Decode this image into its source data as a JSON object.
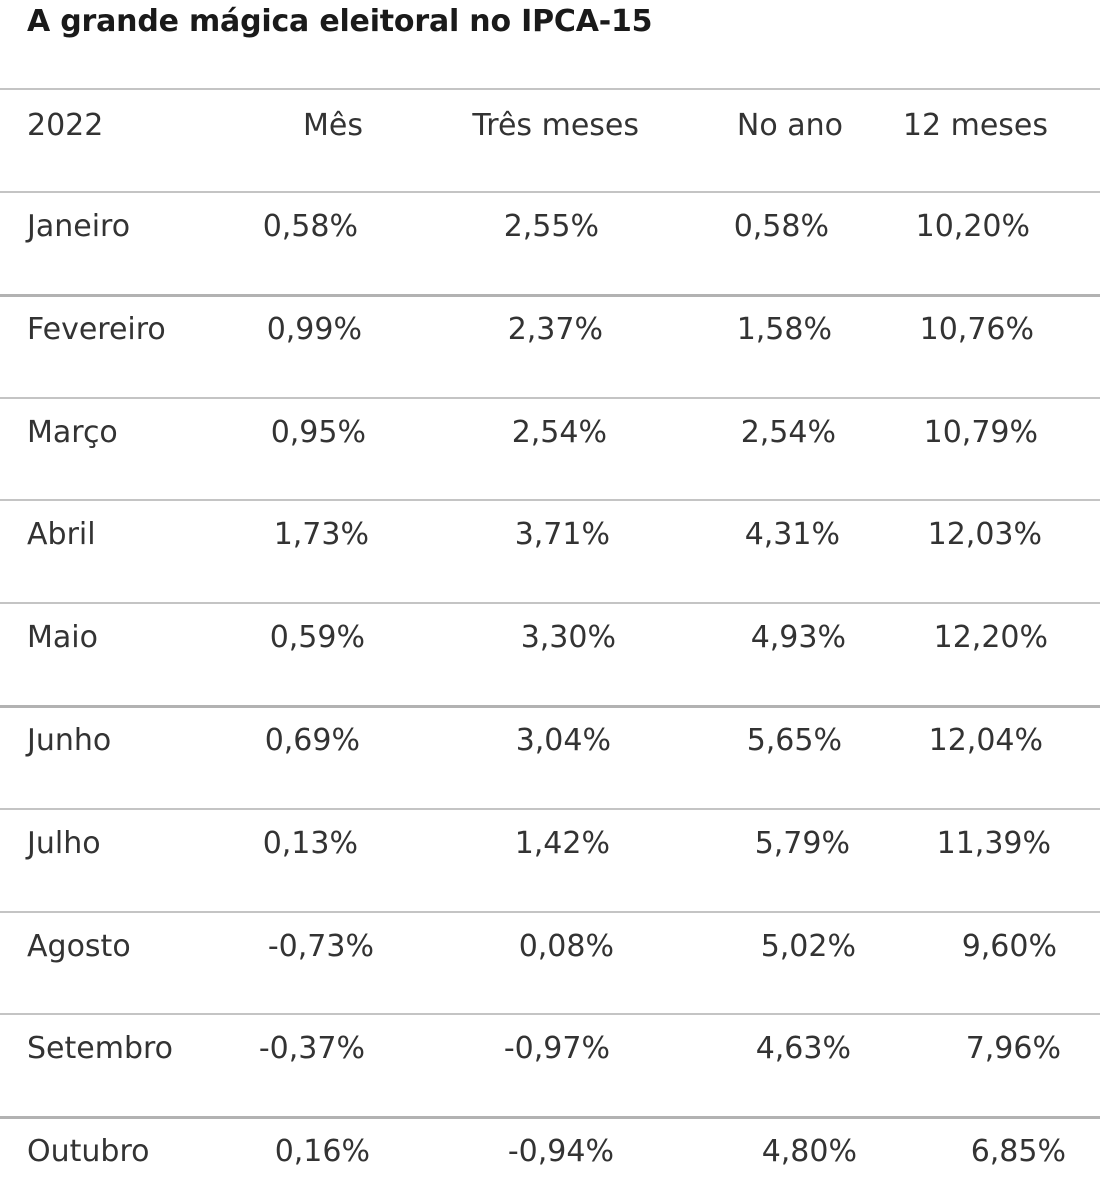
{
  "title": "A grande mágica eleitoral no IPCA-15",
  "chart_data": {
    "type": "table",
    "headers": [
      "2022",
      "Mês",
      "Três meses",
      "No ano",
      "12 meses"
    ],
    "rows": [
      [
        "Janeiro",
        "0,58%",
        "2,55%",
        "0,58%",
        "10,20%"
      ],
      [
        "Fevereiro",
        "0,99%",
        "2,37%",
        "1,58%",
        "10,76%"
      ],
      [
        "Março",
        "0,95%",
        "2,54%",
        "2,54%",
        "10,79%"
      ],
      [
        "Abril",
        "1,73%",
        "3,71%",
        "4,31%",
        "12,03%"
      ],
      [
        "Maio",
        "0,59%",
        "3,30%",
        "4,93%",
        "12,20%"
      ],
      [
        "Junho",
        "0,69%",
        "3,04%",
        "5,65%",
        "12,04%"
      ],
      [
        "Julho",
        "0,13%",
        "1,42%",
        "5,79%",
        "11,39%"
      ],
      [
        "Agosto",
        "-0,73%",
        "0,08%",
        "5,02%",
        "9,60%"
      ],
      [
        "Setembro",
        "-0,37%",
        "-0,97%",
        "4,63%",
        "7,96%"
      ],
      [
        "Outubro",
        "0,16%",
        "-0,94%",
        "4,80%",
        "6,85%"
      ]
    ]
  }
}
